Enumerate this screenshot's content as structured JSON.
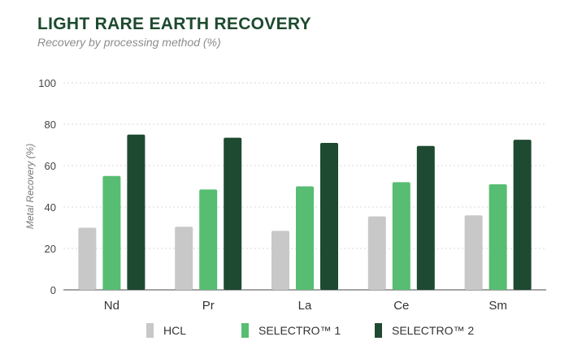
{
  "header": {
    "title": "LIGHT RARE EARTH RECOVERY",
    "subtitle": "Recovery by processing method (%)"
  },
  "chart_data": {
    "type": "bar",
    "title": "LIGHT RARE EARTH RECOVERY",
    "subtitle": "Recovery by processing method (%)",
    "xlabel": "",
    "ylabel": "Metal Recovery (%)",
    "ylim": [
      0,
      100
    ],
    "yticks": [
      0,
      20,
      40,
      60,
      80,
      100
    ],
    "grid": true,
    "legend_position": "bottom",
    "categories": [
      "Nd",
      "Pr",
      "La",
      "Ce",
      "Sm"
    ],
    "series": [
      {
        "name": "HCL",
        "color": "#c8c8c8",
        "values": [
          30,
          30.5,
          28.5,
          35.5,
          36
        ]
      },
      {
        "name": "SELECTRO™ 1",
        "color": "#57bd72",
        "values": [
          55,
          48.5,
          50,
          52,
          51
        ]
      },
      {
        "name": "SELECTRO™ 2",
        "color": "#1e4a31",
        "values": [
          75,
          73.5,
          71,
          69.5,
          72.5
        ]
      }
    ]
  }
}
